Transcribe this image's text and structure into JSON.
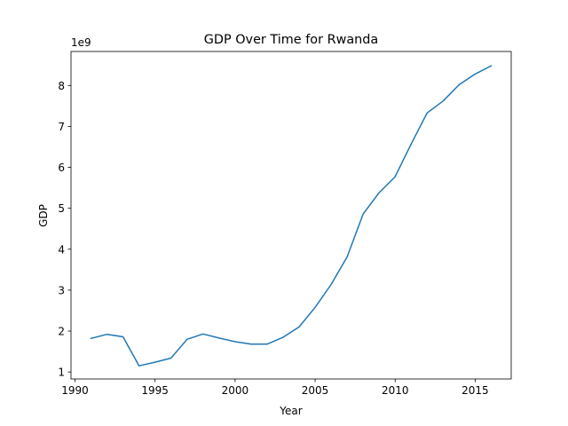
{
  "chart_data": {
    "type": "line",
    "title": "GDP Over Time for Rwanda",
    "xlabel": "Year",
    "ylabel": "GDP",
    "y_offset_label": "1e9",
    "xlim": [
      1989.75,
      2017.25
    ],
    "ylim": [
      0.83,
      8.83
    ],
    "x_ticks": [
      1990,
      1995,
      2000,
      2005,
      2010,
      2015
    ],
    "y_ticks": [
      1,
      2,
      3,
      4,
      5,
      6,
      7,
      8
    ],
    "grid": false,
    "line_color": "#1f77b4",
    "series": [
      {
        "x": [
          1991,
          1992,
          1993,
          1994,
          1995,
          1996,
          1997,
          1998,
          1999,
          2000,
          2001,
          2002,
          2003,
          2004,
          2005,
          2006,
          2007,
          2008,
          2009,
          2010,
          2011,
          2012,
          2013,
          2014,
          2015,
          2016
        ],
        "values": [
          1.82,
          1.92,
          1.86,
          1.15,
          1.24,
          1.34,
          1.8,
          1.93,
          1.83,
          1.74,
          1.68,
          1.68,
          1.85,
          2.1,
          2.58,
          3.14,
          3.81,
          4.86,
          5.38,
          5.77,
          6.57,
          7.33,
          7.62,
          8.02,
          8.28,
          8.48
        ]
      }
    ]
  }
}
